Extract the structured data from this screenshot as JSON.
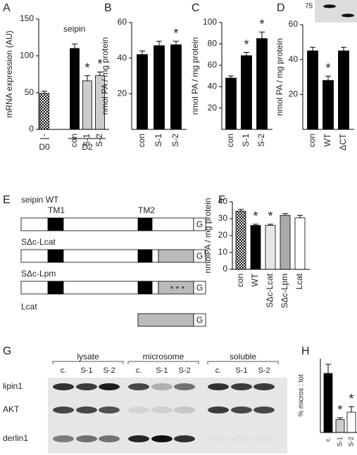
{
  "chart_data": [
    {
      "type": "bar",
      "panel": "A",
      "title": "seipin",
      "y_label": "mRNA expression (AU)",
      "categories": [
        "-",
        "con",
        "S-1",
        "S-2"
      ],
      "values": [
        49,
        110,
        66,
        73
      ],
      "errors": [
        3,
        6,
        7,
        5
      ],
      "colors": [
        "checkered",
        "#000000",
        "#cccccc",
        "#cccccc"
      ],
      "ylim": [
        0,
        150
      ],
      "yticks": [
        0,
        50,
        100,
        150
      ],
      "annotations": [
        {
          "category": "S-1",
          "text": "*"
        },
        {
          "category": "S-2",
          "text": "*"
        }
      ],
      "groups": [
        "D0",
        "D2"
      ]
    },
    {
      "type": "bar",
      "panel": "B",
      "y_label": "nmol PA / mg protein",
      "categories": [
        "con",
        "S-1",
        "S-2"
      ],
      "values": [
        42,
        47,
        47.5
      ],
      "errors": [
        2,
        2.5,
        2
      ],
      "colors": [
        "#000000",
        "#000000",
        "#000000"
      ],
      "ylim": [
        0,
        60
      ],
      "yticks": [
        20,
        40,
        60
      ],
      "annotations": [
        {
          "category": "S-2",
          "text": "*"
        }
      ]
    },
    {
      "type": "bar",
      "panel": "C",
      "y_label": "nmol PA / mg protein",
      "categories": [
        "con",
        "S-1",
        "S-2"
      ],
      "values": [
        48,
        69,
        85
      ],
      "errors": [
        2,
        3,
        6
      ],
      "colors": [
        "#000000",
        "#000000",
        "#000000"
      ],
      "ylim": [
        0,
        100
      ],
      "yticks": [
        20,
        40,
        60,
        80,
        100
      ],
      "annotations": [
        {
          "category": "S-1",
          "text": "*"
        },
        {
          "category": "S-2",
          "text": "*"
        }
      ]
    },
    {
      "type": "bar",
      "panel": "D",
      "y_label": "nmol PA / mg protein",
      "categories": [
        "con",
        "WT",
        "ΔCT"
      ],
      "values": [
        45,
        28,
        45
      ],
      "errors": [
        2,
        2.5,
        2
      ],
      "colors": [
        "#000000",
        "#000000",
        "#000000"
      ],
      "ylim": [
        0,
        60
      ],
      "yticks": [
        20,
        40,
        60
      ],
      "annotations": [
        {
          "category": "WT",
          "text": "*"
        }
      ],
      "inset_marker": "75"
    },
    {
      "type": "bar",
      "panel": "F",
      "y_label": "nmolPA / mg protein",
      "categories": [
        "con",
        "WT",
        "SΔc-Lcat",
        "SΔc-Lpm",
        "Lcat"
      ],
      "values": [
        34.5,
        26,
        26,
        32,
        30.5
      ],
      "errors": [
        1,
        0.7,
        0.7,
        1,
        1.5
      ],
      "colors": [
        "checkered",
        "#000000",
        "#e6e6e6",
        "#aaaaaa",
        "#ffffff"
      ],
      "ylim": [
        0,
        40
      ],
      "yticks": [
        0,
        10,
        20,
        30,
        40
      ],
      "annotations": [
        {
          "category": "WT",
          "text": "*"
        },
        {
          "category": "SΔc-Lcat",
          "text": "*"
        }
      ]
    },
    {
      "type": "bar",
      "panel": "H",
      "y_label": "% micros : tot",
      "categories": [
        "c.",
        "S-1",
        "S-2"
      ],
      "values": [
        16,
        3.5,
        5.5
      ],
      "errors": [
        2.5,
        0.5,
        1.5
      ],
      "colors": [
        "#000000",
        "#cccccc",
        "#ffffff"
      ],
      "ylim": [
        0,
        20
      ],
      "annotations": [
        {
          "category": "S-1",
          "text": "*"
        },
        {
          "category": "S-2",
          "text": "*"
        }
      ]
    }
  ],
  "diagram": {
    "panel": "E",
    "constructs": [
      {
        "name": "seipin WT",
        "tm1": "TM1",
        "tm2": "TM2",
        "tag": "G"
      },
      {
        "name": "SΔc-Lcat",
        "tag": "G"
      },
      {
        "name": "SΔc-Lpm",
        "mutation": "* * *",
        "tag": "G"
      },
      {
        "name": "Lcat",
        "tag": "G"
      }
    ]
  },
  "blot": {
    "panel": "G",
    "fractions": [
      "lysate",
      "microsome",
      "soluble"
    ],
    "lanes": [
      "c.",
      "S-1",
      "S-2"
    ],
    "rows": [
      "lipin1",
      "AKT",
      "derlin1"
    ]
  }
}
